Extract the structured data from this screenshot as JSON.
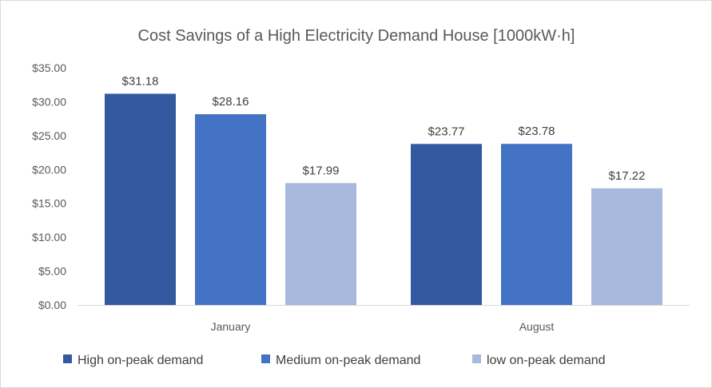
{
  "chart_data": {
    "type": "bar",
    "title": "Cost Savings of a High Electricity Demand House [1000kW·h]",
    "xlabel": "",
    "ylabel": "",
    "categories": [
      "January",
      "August"
    ],
    "series": [
      {
        "name": "High on-peak demand",
        "color": "#335aa0",
        "values": [
          31.18,
          23.77
        ],
        "labels": [
          "$31.18",
          "$23.77"
        ]
      },
      {
        "name": "Medium on-peak demand",
        "color": "#4472c4",
        "values": [
          28.16,
          23.78
        ],
        "labels": [
          "$28.16",
          "$23.78"
        ]
      },
      {
        "name": "low on-peak demand",
        "color": "#a9b8dd",
        "values": [
          17.99,
          17.22
        ],
        "labels": [
          "$17.99",
          "$17.22"
        ]
      }
    ],
    "ylim": [
      0,
      35
    ],
    "yticks": [
      0,
      5,
      10,
      15,
      20,
      25,
      30,
      35
    ],
    "ytick_labels": [
      "$0.00",
      "$5.00",
      "$10.00",
      "$15.00",
      "$20.00",
      "$25.00",
      "$30.00",
      "$35.00"
    ],
    "grid": false,
    "legend_position": "bottom"
  }
}
